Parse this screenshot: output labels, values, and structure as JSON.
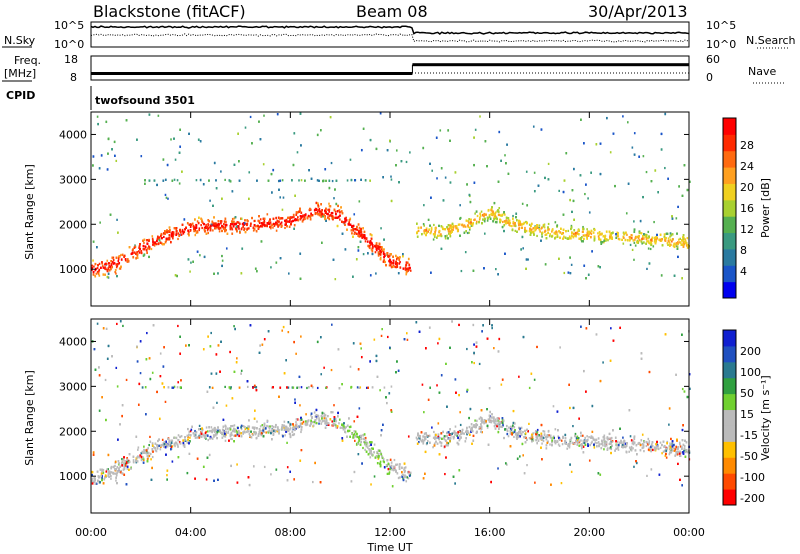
{
  "header": {
    "title_left": "Blackstone (fitACF)",
    "title_center": "Beam 08",
    "title_right": "30/Apr/2013"
  },
  "top_panel": {
    "left_label": "N.Sky",
    "right_label": "N.Search",
    "right_ticks": [
      "10^5",
      "10^0"
    ],
    "left_ticks": [
      "10^5",
      "10^0"
    ]
  },
  "freq_panel": {
    "left_label_1": "Freq.",
    "left_label_2": "[MHz]",
    "left_ticks": [
      "18",
      "8"
    ],
    "right_label": "Nave",
    "right_ticks": [
      "60",
      "0"
    ]
  },
  "cpid": {
    "label": "CPID",
    "value": "twofsound 3501"
  },
  "x_axis": {
    "label": "Time UT",
    "ticks": [
      "00:00",
      "04:00",
      "08:00",
      "12:00",
      "16:00",
      "20:00",
      "00:00"
    ]
  },
  "power_colorbar": {
    "label": "Power [dB]",
    "ticks": [
      "28",
      "24",
      "20",
      "16",
      "12",
      "8",
      "4"
    ],
    "colors": [
      "#0000ee",
      "#1a55c8",
      "#2a7aa0",
      "#3a9a80",
      "#55b050",
      "#a8d030",
      "#f0d020",
      "#ffa020",
      "#ff6a10",
      "#ff2a00",
      "#ff0000"
    ]
  },
  "velocity_colorbar": {
    "label": "Velocity [m s⁻¹]",
    "ticks": [
      "200",
      "100",
      "50",
      "15",
      "-15",
      "-50",
      "-100",
      "-200"
    ],
    "colors": [
      "#ff0000",
      "#ff4a00",
      "#ff8a00",
      "#ffc000",
      "#bbbbbb",
      "#bbbbbb",
      "#70d030",
      "#30a040",
      "#2a7a90",
      "#2050c0",
      "#1020d0"
    ]
  },
  "chart_data": [
    {
      "type": "heatmap",
      "name": "power",
      "xlabel": "Time UT",
      "ylabel": "Slant Range [km]",
      "xlim_hours": [
        0,
        24
      ],
      "ylim_km": [
        180,
        4500
      ],
      "yticks": [
        1000,
        2000,
        3000,
        4000
      ],
      "colorbar_range_db": [
        0,
        32
      ],
      "main_echo_band_range_km": [
        [
          0,
          1000
        ],
        [
          1,
          1150
        ],
        [
          2,
          1500
        ],
        [
          3,
          1750
        ],
        [
          4,
          1950
        ],
        [
          5,
          2000
        ],
        [
          6,
          2000
        ],
        [
          7,
          2050
        ],
        [
          8,
          2100
        ],
        [
          9,
          2350
        ],
        [
          10,
          2200
        ],
        [
          11,
          1700
        ],
        [
          12,
          1200
        ],
        [
          12.8,
          1050
        ],
        [
          13,
          1900
        ],
        [
          14,
          1850
        ],
        [
          15,
          2000
        ],
        [
          16,
          2300
        ],
        [
          17,
          2000
        ],
        [
          18,
          1900
        ],
        [
          19,
          1800
        ],
        [
          20,
          1800
        ],
        [
          21,
          1750
        ],
        [
          22,
          1700
        ],
        [
          23,
          1650
        ],
        [
          24,
          1600
        ]
      ],
      "constant_line_range_km": 3000,
      "gap_hours": [
        12.8,
        13.0
      ]
    },
    {
      "type": "heatmap",
      "name": "velocity",
      "xlabel": "Time UT",
      "ylabel": "Slant Range [km]",
      "xlim_hours": [
        0,
        24
      ],
      "ylim_km": [
        180,
        4500
      ],
      "yticks": [
        1000,
        2000,
        3000,
        4000
      ],
      "colorbar_range_ms": [
        -250,
        250
      ]
    },
    {
      "type": "line",
      "name": "noise",
      "series": [
        {
          "name": "N.Sky",
          "style": "solid"
        },
        {
          "name": "N.Search",
          "style": "dotted"
        }
      ]
    },
    {
      "type": "line",
      "name": "freq_nave",
      "freq_mhz_segments": [
        {
          "from_hour": 0,
          "to_hour": 12.9,
          "value": 10.5
        },
        {
          "from_hour": 12.9,
          "to_hour": 24,
          "value": 14.5
        }
      ],
      "nave_dotted": true
    }
  ]
}
